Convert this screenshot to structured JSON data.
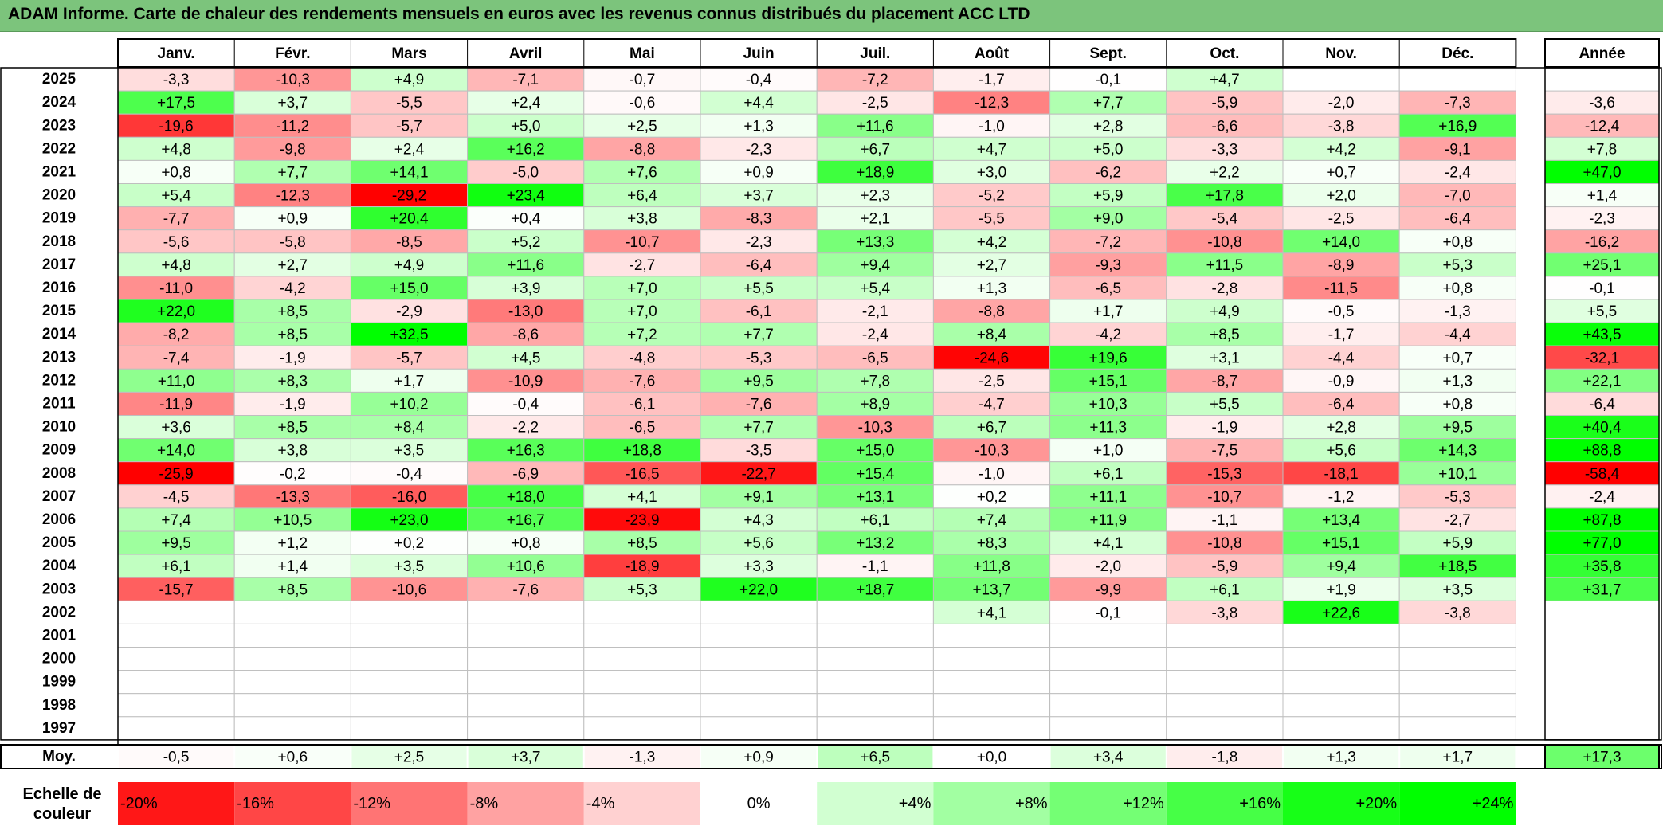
{
  "title": "ADAM Informe. Carte de chaleur des rendements mensuels en euros avec les revenus connus distribués du placement ACC LTD",
  "chart_data": {
    "type": "heatmap",
    "months": [
      "Janv.",
      "Févr.",
      "Mars",
      "Avril",
      "Mai",
      "Juin",
      "Juil.",
      "Août",
      "Sept.",
      "Oct.",
      "Nov.",
      "Déc."
    ],
    "year_header": "Année",
    "rows": [
      {
        "year": "2025",
        "values": [
          "-3,3",
          "-10,3",
          "+4,9",
          "-7,1",
          "-0,7",
          "-0,4",
          "-7,2",
          "-1,7",
          "-0,1",
          "+4,7",
          null,
          null
        ],
        "annual": null
      },
      {
        "year": "2024",
        "values": [
          "+17,5",
          "+3,7",
          "-5,5",
          "+2,4",
          "-0,6",
          "+4,4",
          "-2,5",
          "-12,3",
          "+7,7",
          "-5,9",
          "-2,0",
          "-7,3"
        ],
        "annual": "-3,6"
      },
      {
        "year": "2023",
        "values": [
          "-19,6",
          "-11,2",
          "-5,7",
          "+5,0",
          "+2,5",
          "+1,3",
          "+11,6",
          "-1,0",
          "+2,8",
          "-6,6",
          "-3,8",
          "+16,9"
        ],
        "annual": "-12,4"
      },
      {
        "year": "2022",
        "values": [
          "+4,8",
          "-9,8",
          "+2,4",
          "+16,2",
          "-8,8",
          "-2,3",
          "+6,7",
          "+4,7",
          "+5,0",
          "-3,3",
          "+4,2",
          "-9,1"
        ],
        "annual": "+7,8"
      },
      {
        "year": "2021",
        "values": [
          "+0,8",
          "+7,7",
          "+14,1",
          "-5,0",
          "+7,6",
          "+0,9",
          "+18,9",
          "+3,0",
          "-6,2",
          "+2,2",
          "+0,7",
          "-2,4"
        ],
        "annual": "+47,0"
      },
      {
        "year": "2020",
        "values": [
          "+5,4",
          "-12,3",
          "-29,2",
          "+23,4",
          "+6,4",
          "+3,7",
          "+2,3",
          "-5,2",
          "+5,9",
          "+17,8",
          "+2,0",
          "-7,0"
        ],
        "annual": "+1,4"
      },
      {
        "year": "2019",
        "values": [
          "-7,7",
          "+0,9",
          "+20,4",
          "+0,4",
          "+3,8",
          "-8,3",
          "+2,1",
          "-5,5",
          "+9,0",
          "-5,4",
          "-2,5",
          "-6,4"
        ],
        "annual": "-2,3"
      },
      {
        "year": "2018",
        "values": [
          "-5,6",
          "-5,8",
          "-8,5",
          "+5,2",
          "-10,7",
          "-2,3",
          "+13,3",
          "+4,2",
          "-7,2",
          "-10,8",
          "+14,0",
          "+0,8"
        ],
        "annual": "-16,2"
      },
      {
        "year": "2017",
        "values": [
          "+4,8",
          "+2,7",
          "+4,9",
          "+11,6",
          "-2,7",
          "-6,4",
          "+9,4",
          "+2,7",
          "-9,3",
          "+11,5",
          "-8,9",
          "+5,3"
        ],
        "annual": "+25,1"
      },
      {
        "year": "2016",
        "values": [
          "-11,0",
          "-4,2",
          "+15,0",
          "+3,9",
          "+7,0",
          "+5,5",
          "+5,4",
          "+1,3",
          "-6,5",
          "-2,8",
          "-11,5",
          "+0,8"
        ],
        "annual": "-0,1"
      },
      {
        "year": "2015",
        "values": [
          "+22,0",
          "+8,5",
          "-2,9",
          "-13,0",
          "+7,0",
          "-6,1",
          "-2,1",
          "-8,8",
          "+1,7",
          "+4,9",
          "-0,5",
          "-1,3"
        ],
        "annual": "+5,5"
      },
      {
        "year": "2014",
        "values": [
          "-8,2",
          "+8,5",
          "+32,5",
          "-8,6",
          "+7,2",
          "+7,7",
          "-2,4",
          "+8,4",
          "-4,2",
          "+8,5",
          "-1,7",
          "-4,4"
        ],
        "annual": "+43,5"
      },
      {
        "year": "2013",
        "values": [
          "-7,4",
          "-1,9",
          "-5,7",
          "+4,5",
          "-4,8",
          "-5,3",
          "-6,5",
          "-24,6",
          "+19,6",
          "+3,1",
          "-4,4",
          "+0,7"
        ],
        "annual": "-32,1"
      },
      {
        "year": "2012",
        "values": [
          "+11,0",
          "+8,3",
          "+1,7",
          "-10,9",
          "-7,6",
          "+9,5",
          "+7,8",
          "-2,5",
          "+15,1",
          "-8,7",
          "-0,9",
          "+1,3"
        ],
        "annual": "+22,1"
      },
      {
        "year": "2011",
        "values": [
          "-11,9",
          "-1,9",
          "+10,2",
          "-0,4",
          "-6,1",
          "-7,6",
          "+8,9",
          "-4,7",
          "+10,3",
          "+5,5",
          "-6,4",
          "+0,8"
        ],
        "annual": "-6,4"
      },
      {
        "year": "2010",
        "values": [
          "+3,6",
          "+8,5",
          "+8,4",
          "-2,2",
          "-6,5",
          "+7,7",
          "-10,3",
          "+6,7",
          "+11,3",
          "-1,9",
          "+2,8",
          "+9,5"
        ],
        "annual": "+40,4"
      },
      {
        "year": "2009",
        "values": [
          "+14,0",
          "+3,8",
          "+3,5",
          "+16,3",
          "+18,8",
          "-3,5",
          "+15,0",
          "-10,3",
          "+1,0",
          "-7,5",
          "+5,6",
          "+14,3"
        ],
        "annual": "+88,8"
      },
      {
        "year": "2008",
        "values": [
          "-25,9",
          "-0,2",
          "-0,4",
          "-6,9",
          "-16,5",
          "-22,7",
          "+15,4",
          "-1,0",
          "+6,1",
          "-15,3",
          "-18,1",
          "+10,1"
        ],
        "annual": "-58,4"
      },
      {
        "year": "2007",
        "values": [
          "-4,5",
          "-13,3",
          "-16,0",
          "+18,0",
          "+4,1",
          "+9,1",
          "+13,1",
          "+0,2",
          "+11,1",
          "-10,7",
          "-1,2",
          "-5,3"
        ],
        "annual": "-2,4"
      },
      {
        "year": "2006",
        "values": [
          "+7,4",
          "+10,5",
          "+23,0",
          "+16,7",
          "-23,9",
          "+4,3",
          "+6,1",
          "+7,4",
          "+11,9",
          "-1,1",
          "+13,4",
          "-2,7"
        ],
        "annual": "+87,8"
      },
      {
        "year": "2005",
        "values": [
          "+9,5",
          "+1,2",
          "+0,2",
          "+0,8",
          "+8,5",
          "+5,6",
          "+13,2",
          "+8,3",
          "+4,1",
          "-10,8",
          "+15,1",
          "+5,9"
        ],
        "annual": "+77,0"
      },
      {
        "year": "2004",
        "values": [
          "+6,1",
          "+1,4",
          "+3,5",
          "+10,6",
          "-18,9",
          "+3,3",
          "-1,1",
          "+11,8",
          "-2,0",
          "-5,9",
          "+9,4",
          "+18,5"
        ],
        "annual": "+35,8"
      },
      {
        "year": "2003",
        "values": [
          "-15,7",
          "+8,5",
          "-10,6",
          "-7,6",
          "+5,3",
          "+22,0",
          "+18,7",
          "+13,7",
          "-9,9",
          "+6,1",
          "+1,9",
          "+3,5"
        ],
        "annual": "+31,7"
      },
      {
        "year": "2002",
        "values": [
          null,
          null,
          null,
          null,
          null,
          null,
          null,
          "+4,1",
          "-0,1",
          "-3,8",
          "+22,6",
          "-3,8"
        ],
        "annual": null
      },
      {
        "year": "2001",
        "values": [
          null,
          null,
          null,
          null,
          null,
          null,
          null,
          null,
          null,
          null,
          null,
          null
        ],
        "annual": null
      },
      {
        "year": "2000",
        "values": [
          null,
          null,
          null,
          null,
          null,
          null,
          null,
          null,
          null,
          null,
          null,
          null
        ],
        "annual": null
      },
      {
        "year": "1999",
        "values": [
          null,
          null,
          null,
          null,
          null,
          null,
          null,
          null,
          null,
          null,
          null,
          null
        ],
        "annual": null
      },
      {
        "year": "1998",
        "values": [
          null,
          null,
          null,
          null,
          null,
          null,
          null,
          null,
          null,
          null,
          null,
          null
        ],
        "annual": null
      },
      {
        "year": "1997",
        "values": [
          null,
          null,
          null,
          null,
          null,
          null,
          null,
          null,
          null,
          null,
          null,
          null
        ],
        "annual": null
      }
    ],
    "average": {
      "label": "Moy.",
      "values": [
        "-0,5",
        "+0,6",
        "+2,5",
        "+3,7",
        "-1,3",
        "+0,9",
        "+6,5",
        "+0,0",
        "+3,4",
        "-1,8",
        "+1,3",
        "+1,7"
      ],
      "annual": "+17,3"
    },
    "scale": {
      "label_line1": "Echelle de",
      "label_line2": "couleur",
      "steps": [
        {
          "label": "-20%",
          "value": -20
        },
        {
          "label": "-16%",
          "value": -16
        },
        {
          "label": "-12%",
          "value": -12
        },
        {
          "label": "-8%",
          "value": -8
        },
        {
          "label": "-4%",
          "value": -4
        },
        {
          "label": "0%",
          "value": 0
        },
        {
          "label": "+4%",
          "value": 4
        },
        {
          "label": "+8%",
          "value": 8
        },
        {
          "label": "+12%",
          "value": 12
        },
        {
          "label": "+16%",
          "value": 16
        },
        {
          "label": "+20%",
          "value": 20
        },
        {
          "label": "+24%",
          "value": 24
        }
      ]
    },
    "colors": {
      "title_bar": "#7cc47c",
      "negative_max": "#ff0000",
      "neutral": "#ffffff",
      "positive_max": "#00ff00",
      "grid": "#bfbfbf",
      "border": "#000000"
    }
  }
}
